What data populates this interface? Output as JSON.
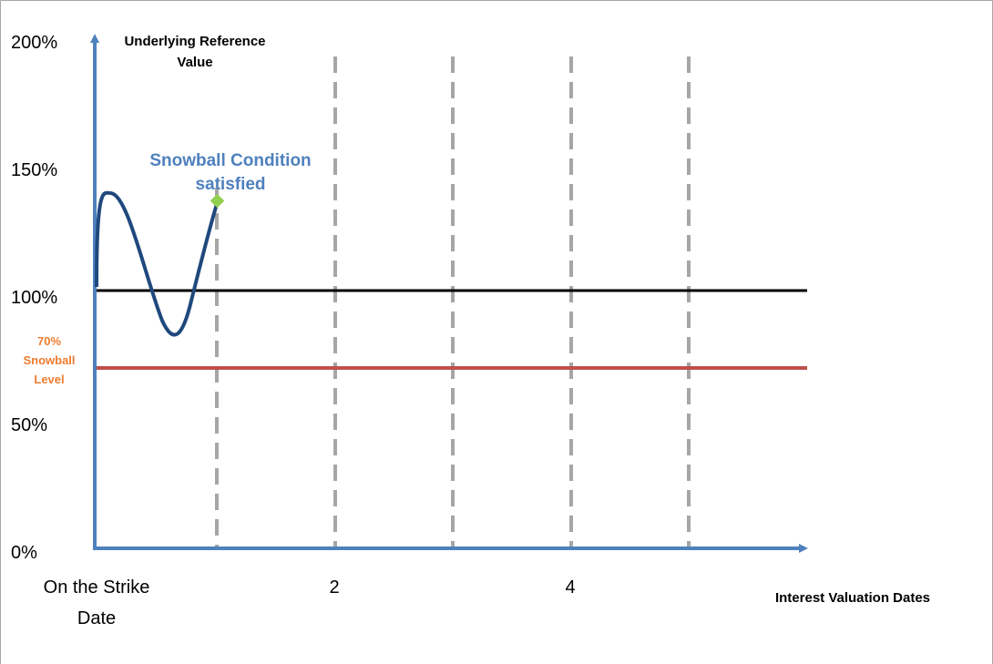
{
  "y_axis": {
    "title_line1": "Underlying Reference",
    "title_line2": "Value",
    "ticks": [
      "200%",
      "150%",
      "100%",
      "50%",
      "0%"
    ]
  },
  "x_axis": {
    "title": "Interest Valuation Dates",
    "start_label_line1": "On the Strike",
    "start_label_line2": "Date",
    "tick_2": "2",
    "tick_4": "4"
  },
  "snowball_level": {
    "line1": "70%",
    "line2": "Snowball",
    "line3": "Level",
    "value_pct": 70,
    "color": "#c0504d"
  },
  "reference_level": {
    "value_pct": 100,
    "color": "#000000"
  },
  "condition": {
    "line1": "Snowball Condition",
    "line2": "satisfied",
    "color": "#4f81bd",
    "marker_color": "#92d050"
  },
  "colors": {
    "axis": "#4f81bd",
    "curve": "#1f497d",
    "dashed": "#a6a6a6",
    "snowball_text": "#ed7d31",
    "frame": "#a6a6a6"
  }
}
